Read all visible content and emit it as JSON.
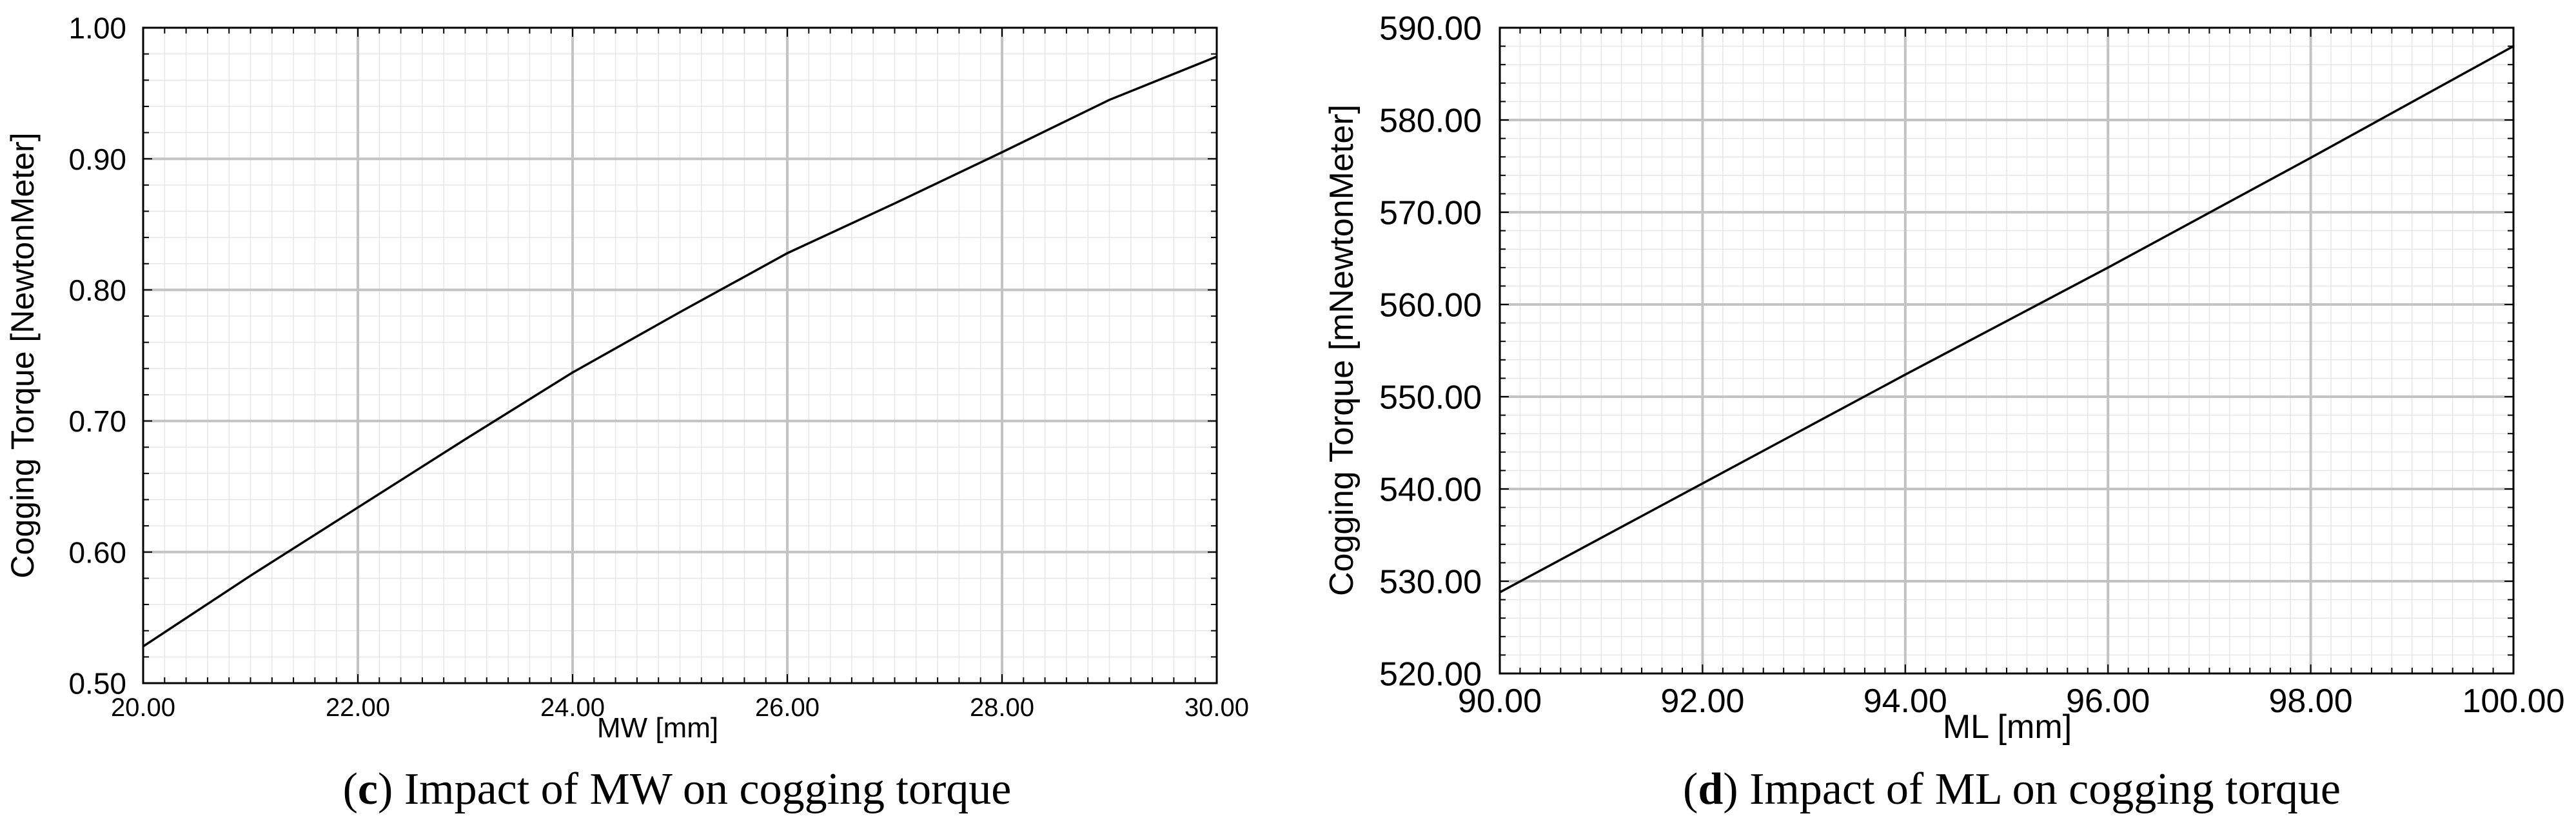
{
  "chart_data": [
    {
      "type": "line",
      "xlabel": "MW [mm]",
      "ylabel": "Cogging Torque [NewtonMeter]",
      "xlim": [
        20,
        30
      ],
      "ylim": [
        0.5,
        1.0
      ],
      "x_ticks": [
        "20.00",
        "22.00",
        "24.00",
        "26.00",
        "28.00",
        "30.00"
      ],
      "y_ticks": [
        "0.50",
        "0.60",
        "0.70",
        "0.80",
        "0.90",
        "1.00"
      ],
      "grid": true,
      "series": [
        {
          "x": [
            20,
            21,
            22,
            23,
            24,
            25,
            26,
            27,
            28,
            29,
            30
          ],
          "y": [
            0.528,
            0.582,
            0.634,
            0.686,
            0.737,
            0.783,
            0.828,
            0.866,
            0.905,
            0.945,
            0.978
          ]
        }
      ],
      "caption": {
        "letter": "c",
        "text": " Impact of MW on cogging torque"
      }
    },
    {
      "type": "line",
      "xlabel": "ML [mm]",
      "ylabel": "Cogging Torque [mNewtonMeter]",
      "xlim": [
        90,
        100
      ],
      "ylim": [
        520,
        590
      ],
      "x_ticks": [
        "90.00",
        "92.00",
        "94.00",
        "96.00",
        "98.00",
        "100.00"
      ],
      "y_ticks": [
        "520.00",
        "530.00",
        "540.00",
        "550.00",
        "560.00",
        "570.00",
        "580.00",
        "590.00"
      ],
      "grid": true,
      "series": [
        {
          "x": [
            90,
            92,
            94,
            96,
            98,
            100
          ],
          "y": [
            528.8,
            540.6,
            552.4,
            564.0,
            575.9,
            588.0
          ]
        }
      ],
      "caption": {
        "letter": "d",
        "text": " Impact of ML on cogging torque"
      }
    }
  ]
}
